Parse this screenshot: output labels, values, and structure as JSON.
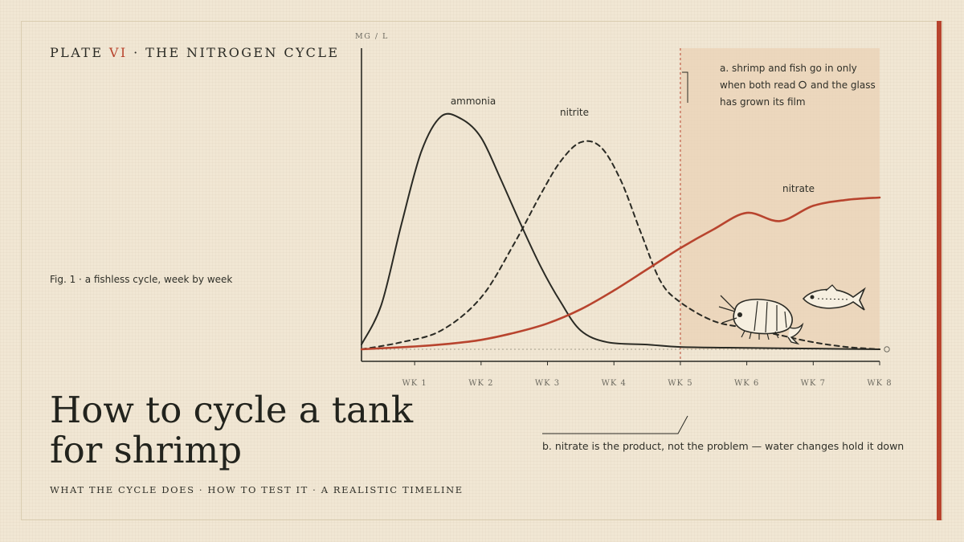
{
  "header": {
    "plate_prefix": "PLATE ",
    "plate_numeral": "VI",
    "plate_suffix": " · THE NITROGEN CYCLE"
  },
  "figure": {
    "caption": "Fig. 1 · a fishless cycle, week by week"
  },
  "title": {
    "line1": "How to cycle a tank",
    "line2": "for shrimp"
  },
  "subtitle": "WHAT THE CYCLE DOES · HOW TO TEST IT · A REALISTIC TIMELINE",
  "notes": {
    "a_lines": [
      "a. shrimp and fish go in only",
      "when both read",
      "and the glass",
      "has grown its film"
    ],
    "b": "b. nitrate is the product, not the problem — water changes hold it down"
  },
  "colors": {
    "ink": "#2a2a24",
    "accent": "#b8442e",
    "shade": "#e9d2b6"
  },
  "icons": [
    "shrimp-icon",
    "fish-icon",
    "zero-ring-icon"
  ],
  "chart_data": {
    "type": "line",
    "ylabel": "MG / L",
    "xlabel": "",
    "categories": [
      "WK 1",
      "WK 2",
      "WK 3",
      "WK 4",
      "WK 5",
      "WK 6",
      "WK 7",
      "WK 8"
    ],
    "xlim": [
      0.2,
      8
    ],
    "ylim": [
      0,
      100
    ],
    "zero_marker": "0",
    "safe_from_week": 5,
    "series": [
      {
        "name": "ammonia",
        "style": "solid",
        "color": "#2a2a24",
        "x": [
          0.2,
          0.5,
          0.8,
          1.1,
          1.4,
          1.7,
          2.0,
          2.3,
          2.6,
          2.9,
          3.2,
          3.5,
          3.9,
          4.5,
          5,
          6,
          7,
          8
        ],
        "y": [
          2,
          19,
          53,
          84,
          99,
          98,
          90,
          72,
          53,
          35,
          20,
          8,
          3,
          2,
          1,
          0.6,
          0.3,
          0
        ]
      },
      {
        "name": "nitrite",
        "style": "dashed",
        "color": "#2a2a24",
        "x": [
          0.2,
          0.8,
          1.4,
          2.0,
          2.5,
          2.9,
          3.2,
          3.5,
          3.8,
          4.1,
          4.4,
          4.7,
          5.0,
          5.5,
          6.0,
          6.5,
          7.0,
          7.5,
          8.0
        ],
        "y": [
          0,
          3,
          8,
          22,
          45,
          66,
          80,
          88,
          86,
          72,
          50,
          29,
          20,
          12,
          9,
          6,
          3,
          1,
          0
        ]
      },
      {
        "name": "nitrate",
        "style": "solid",
        "color": "#b8442e",
        "x": [
          0.2,
          1.0,
          1.5,
          2.0,
          2.5,
          3.0,
          3.5,
          4.0,
          4.5,
          5.0,
          5.5,
          6.0,
          6.5,
          7.0,
          7.5,
          8.0
        ],
        "y": [
          0,
          1.2,
          2.3,
          4,
          7,
          11,
          17,
          25,
          34,
          43,
          51,
          58,
          54.5,
          61,
          63.5,
          64.5
        ]
      }
    ]
  }
}
